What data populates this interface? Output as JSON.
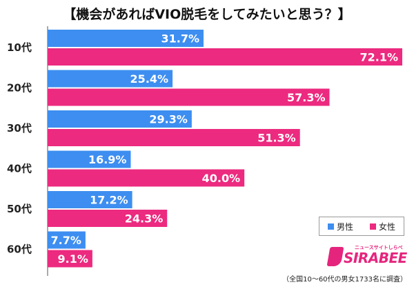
{
  "chart_data": {
    "type": "bar",
    "orientation": "horizontal",
    "title": "【機会があればVIO脱毛をしてみたいと思う？】",
    "categories": [
      "10代",
      "20代",
      "30代",
      "40代",
      "50代",
      "60代"
    ],
    "series": [
      {
        "name": "男性",
        "color": "#3d8ef0",
        "values": [
          31.7,
          25.4,
          29.3,
          16.9,
          17.2,
          7.7
        ]
      },
      {
        "name": "女性",
        "color": "#ec2a7f",
        "values": [
          72.1,
          57.3,
          51.3,
          40.0,
          24.3,
          9.1
        ]
      }
    ],
    "value_suffix": "%",
    "xlim": [
      0,
      72.1
    ],
    "legend_position": "bottom-right",
    "grid": false
  },
  "logo": {
    "text": "SIRABEE",
    "subtext": "ニュースサイトしらべぇ",
    "color": "#e5257d"
  },
  "footnote": "（全国10～60代の男女1733名に調査）"
}
